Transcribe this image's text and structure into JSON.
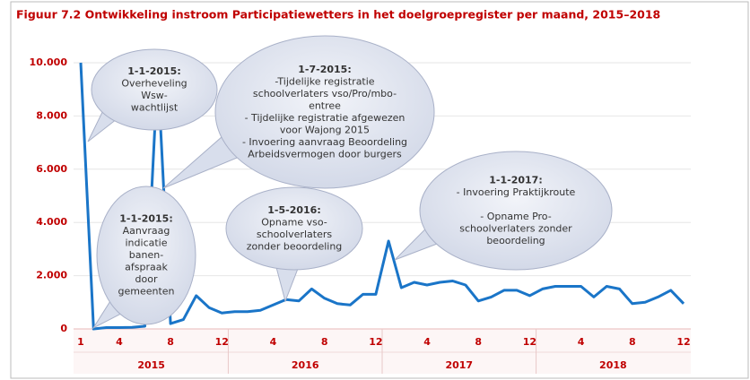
{
  "chart_data": {
    "type": "line",
    "title": "Figuur 7.2 Ontwikkeling instroom Participatiewetters in het doelgroepregister per maand, 2015–2018",
    "categories": [
      "1",
      null,
      null,
      "4",
      null,
      null,
      null,
      "8",
      null,
      null,
      null,
      "12",
      null,
      null,
      null,
      "4",
      null,
      null,
      null,
      "8",
      null,
      null,
      null,
      "12",
      null,
      null,
      null,
      "4",
      null,
      null,
      null,
      "8",
      null,
      null,
      null,
      "12",
      null,
      null,
      null,
      "4",
      null,
      null,
      null,
      "8",
      null,
      null,
      null,
      "12"
    ],
    "years": [
      "2015",
      "2016",
      "2017",
      "2018"
    ],
    "values": [
      10000,
      0,
      50,
      50,
      60,
      100,
      9700,
      200,
      350,
      1250,
      800,
      600,
      650,
      650,
      700,
      900,
      1100,
      1050,
      1500,
      1150,
      950,
      900,
      1300,
      1300,
      3300,
      1550,
      1750,
      1650,
      1750,
      1800,
      1650,
      1050,
      1200,
      1450,
      1450,
      1250,
      1500,
      1600,
      1600,
      1600,
      1200,
      1600,
      1500,
      950,
      1000,
      1200,
      1450,
      950
    ],
    "color": "#1a75c8",
    "ylim": [
      0,
      10000
    ],
    "yticks": [
      0,
      {
        "value": 2000,
        "label": "2.000"
      },
      {
        "value": 4000,
        "label": "4.000"
      },
      {
        "value": 6000,
        "label": "6.000"
      },
      {
        "value": 8000,
        "label": "8.000"
      },
      {
        "value": 10000,
        "label": "10.000"
      }
    ],
    "grid": true,
    "annotations": [
      {
        "heading": "1-1-2015:",
        "lines": [
          "Overheveling",
          "Wsw-",
          "wachtlijst"
        ]
      },
      {
        "heading": "1-7-2015:",
        "lines": [
          "-Tijdelijke registratie",
          "schoolverlaters vso/Pro/mbo-",
          "entree",
          "- Tijdelijke registratie afgewezen",
          "voor Wajong 2015",
          "- Invoering aanvraag Beoordeling",
          "Arbeidsvermogen door burgers"
        ]
      },
      {
        "heading": "1-1-2015:",
        "lines": [
          "Aanvraag",
          "indicatie",
          "banen-",
          "afspraak",
          "door",
          "gemeenten"
        ]
      },
      {
        "heading": "1-5-2016:",
        "lines": [
          "Opname vso-",
          "schoolverlaters",
          "zonder beoordeling"
        ]
      },
      {
        "heading": "1-1-2017:",
        "lines": [
          "- Invoering Praktijkroute",
          "- Opname Pro-",
          "schoolverlaters zonder",
          "beoordeling"
        ]
      }
    ]
  }
}
